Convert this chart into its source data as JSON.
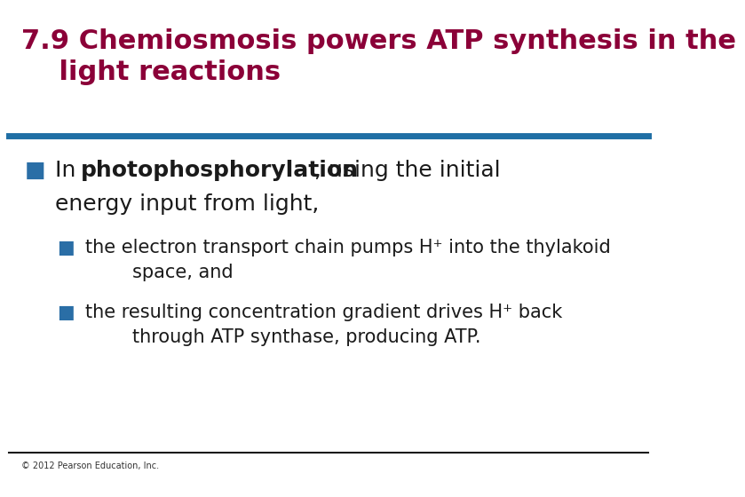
{
  "title_line1": "7.9 Chemiosmosis powers ATP synthesis in the",
  "title_line2": "    light reactions",
  "title_color": "#8B0038",
  "title_fontsize": 22,
  "blue_bar_color": "#1F6FA5",
  "black_bar_color": "#1a1a1a",
  "bg_color": "#ffffff",
  "bullet1_color": "#1a1a1a",
  "bullet1_fontsize": 18,
  "sub_bullet_color": "#2A6EA6",
  "sub_bullet_fontsize": 15,
  "footer_text": "© 2012 Pearson Education, Inc.",
  "footer_fontsize": 7,
  "footer_color": "#333333"
}
